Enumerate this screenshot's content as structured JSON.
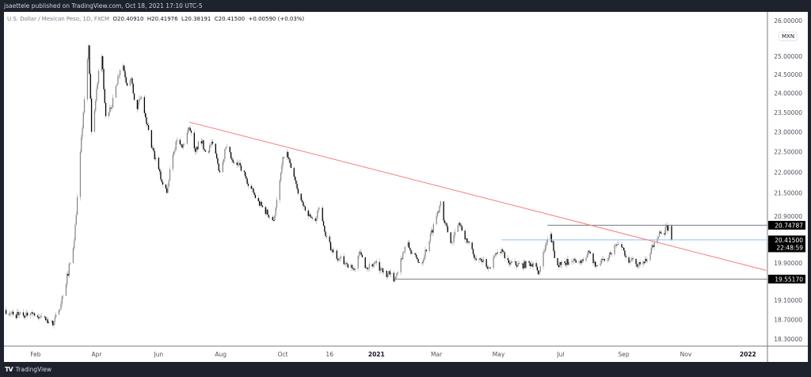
{
  "header": {
    "publisher": "jsaettele published on TradingView.com, Oct 18, 2021 17:10 UTC-5"
  },
  "legend": {
    "symbol": "U.S. Dollar / Mexican Peso, 1D, FXCM",
    "open": "O20.40910",
    "high": "H20.41976",
    "low": "L20.38191",
    "close": "C20.41500",
    "change": "+0.00590 (+0.03%)"
  },
  "currency_badge": "MXN",
  "footer": {
    "logo": "TV",
    "brand": "TradingView"
  },
  "colors": {
    "frame": "#1e222d",
    "trendline": "#f77c80",
    "blue_level": "#90bff9",
    "level": "#787b86",
    "candle_down": "#000000",
    "candle_up": "#8a8a8a"
  },
  "chart_data": {
    "type": "candlestick",
    "interval": "1D",
    "yscale": "log",
    "ylim": [
      18.15,
      26.4
    ],
    "xlim": [
      "2020-01-01",
      "2022-02-01"
    ],
    "closes": [
      [
        "2020-01-02",
        18.9
      ],
      [
        "2020-01-10",
        18.8
      ],
      [
        "2020-01-20",
        18.78
      ],
      [
        "2020-01-28",
        18.85
      ],
      [
        "2020-02-05",
        18.75
      ],
      [
        "2020-02-12",
        18.7
      ],
      [
        "2020-02-18",
        18.58
      ],
      [
        "2020-02-24",
        18.9
      ],
      [
        "2020-03-01",
        19.4
      ],
      [
        "2020-03-06",
        19.9
      ],
      [
        "2020-03-10",
        20.4
      ],
      [
        "2020-03-14",
        21.7
      ],
      [
        "2020-03-19",
        23.5
      ],
      [
        "2020-03-24",
        25.3
      ],
      [
        "2020-03-27",
        23.0
      ],
      [
        "2020-03-31",
        23.8
      ],
      [
        "2020-04-03",
        24.6
      ],
      [
        "2020-04-06",
        25.0
      ],
      [
        "2020-04-10",
        23.4
      ],
      [
        "2020-04-15",
        23.6
      ],
      [
        "2020-04-20",
        24.2
      ],
      [
        "2020-04-26",
        24.9
      ],
      [
        "2020-05-01",
        24.2
      ],
      [
        "2020-05-05",
        24.4
      ],
      [
        "2020-05-10",
        23.6
      ],
      [
        "2020-05-15",
        23.9
      ],
      [
        "2020-05-20",
        23.2
      ],
      [
        "2020-05-25",
        22.6
      ],
      [
        "2020-05-30",
        22.2
      ],
      [
        "2020-06-05",
        21.7
      ],
      [
        "2020-06-09",
        21.5
      ],
      [
        "2020-06-14",
        22.4
      ],
      [
        "2020-06-19",
        22.8
      ],
      [
        "2020-06-24",
        22.6
      ],
      [
        "2020-07-01",
        23.1
      ],
      [
        "2020-07-07",
        22.5
      ],
      [
        "2020-07-12",
        22.8
      ],
      [
        "2020-07-18",
        22.5
      ],
      [
        "2020-07-24",
        22.7
      ],
      [
        "2020-07-31",
        22.0
      ],
      [
        "2020-08-06",
        22.6
      ],
      [
        "2020-08-12",
        22.3
      ],
      [
        "2020-08-18",
        22.2
      ],
      [
        "2020-08-25",
        21.9
      ],
      [
        "2020-08-31",
        21.6
      ],
      [
        "2020-09-06",
        21.3
      ],
      [
        "2020-09-13",
        21.1
      ],
      [
        "2020-09-22",
        20.85
      ],
      [
        "2020-09-28",
        21.8
      ],
      [
        "2020-10-03",
        22.6
      ],
      [
        "2020-10-09",
        22.1
      ],
      [
        "2020-10-15",
        21.6
      ],
      [
        "2020-10-21",
        21.2
      ],
      [
        "2020-10-27",
        21.0
      ],
      [
        "2020-11-02",
        20.85
      ],
      [
        "2020-11-07",
        21.2
      ],
      [
        "2020-11-12",
        20.5
      ],
      [
        "2020-11-18",
        20.2
      ],
      [
        "2020-11-25",
        20.0
      ],
      [
        "2020-12-02",
        19.9
      ],
      [
        "2020-12-10",
        19.75
      ],
      [
        "2020-12-15",
        20.15
      ],
      [
        "2020-12-22",
        19.8
      ],
      [
        "2020-12-30",
        19.9
      ],
      [
        "2021-01-07",
        19.7
      ],
      [
        "2021-01-14",
        19.65
      ],
      [
        "2021-01-19",
        19.55
      ],
      [
        "2021-01-25",
        20.0
      ],
      [
        "2021-01-31",
        20.35
      ],
      [
        "2021-02-06",
        20.05
      ],
      [
        "2021-02-14",
        19.9
      ],
      [
        "2021-02-21",
        20.35
      ],
      [
        "2021-02-28",
        20.9
      ],
      [
        "2021-03-05",
        21.3
      ],
      [
        "2021-03-09",
        20.8
      ],
      [
        "2021-03-16",
        20.35
      ],
      [
        "2021-03-23",
        20.8
      ],
      [
        "2021-03-30",
        20.45
      ],
      [
        "2021-04-06",
        20.1
      ],
      [
        "2021-04-14",
        19.95
      ],
      [
        "2021-04-22",
        19.8
      ],
      [
        "2021-04-29",
        20.1
      ],
      [
        "2021-05-04",
        20.2
      ],
      [
        "2021-05-11",
        19.9
      ],
      [
        "2021-05-23",
        19.85
      ],
      [
        "2021-06-04",
        19.9
      ],
      [
        "2021-06-10",
        19.7
      ],
      [
        "2021-06-17",
        20.35
      ],
      [
        "2021-06-21",
        20.55
      ],
      [
        "2021-06-27",
        19.85
      ],
      [
        "2021-07-05",
        19.9
      ],
      [
        "2021-07-13",
        19.95
      ],
      [
        "2021-07-21",
        19.9
      ],
      [
        "2021-07-29",
        20.15
      ],
      [
        "2021-08-05",
        19.85
      ],
      [
        "2021-08-13",
        19.95
      ],
      [
        "2021-08-20",
        20.1
      ],
      [
        "2021-08-25",
        20.3
      ],
      [
        "2021-08-30",
        20.25
      ],
      [
        "2021-09-05",
        20.0
      ],
      [
        "2021-09-13",
        19.88
      ],
      [
        "2021-09-21",
        19.9
      ],
      [
        "2021-09-27",
        20.1
      ],
      [
        "2021-10-02",
        20.45
      ],
      [
        "2021-10-06",
        20.6
      ],
      [
        "2021-10-10",
        20.55
      ],
      [
        "2021-10-13",
        20.75
      ],
      [
        "2021-10-16",
        20.6
      ],
      [
        "2021-10-18",
        20.415
      ]
    ],
    "y_ticks": [
      "26.00000",
      "25.00000",
      "24.50000",
      "24.00000",
      "23.50000",
      "23.00000",
      "22.50000",
      "22.00000",
      "21.50000",
      "20.90000",
      "19.90000",
      "19.10000",
      "18.70000",
      "18.30000"
    ],
    "x_ticks": [
      {
        "label": "Feb",
        "date": "2020-02-01"
      },
      {
        "label": "Apr",
        "date": "2020-04-01"
      },
      {
        "label": "Jun",
        "date": "2020-06-01"
      },
      {
        "label": "Aug",
        "date": "2020-08-01"
      },
      {
        "label": "Oct",
        "date": "2020-10-01"
      },
      {
        "label": "16",
        "date": "2020-11-16"
      },
      {
        "label": "2021",
        "date": "2021-01-01",
        "bold": true
      },
      {
        "label": "Mar",
        "date": "2021-03-01"
      },
      {
        "label": "May",
        "date": "2021-05-01"
      },
      {
        "label": "Jul",
        "date": "2021-07-01"
      },
      {
        "label": "Sep",
        "date": "2021-09-01"
      },
      {
        "label": "Nov",
        "date": "2021-11-01"
      },
      {
        "label": "2022",
        "date": "2022-01-01",
        "bold": true
      }
    ],
    "trendline": {
      "from": [
        "2020-07-01",
        23.25
      ],
      "to": [
        "2022-01-19",
        19.74
      ]
    },
    "levels": [
      {
        "price": 20.74787,
        "from": "2021-06-18",
        "label": "20.74787",
        "color": "#787b86"
      },
      {
        "price": 20.415,
        "from": "2021-05-04",
        "label": "20.41500",
        "countdown": "22:48:59",
        "color": "#90bff9"
      },
      {
        "price": 19.5517,
        "from": "2021-01-19",
        "label": "19.55170",
        "color": "#787b86"
      }
    ]
  }
}
